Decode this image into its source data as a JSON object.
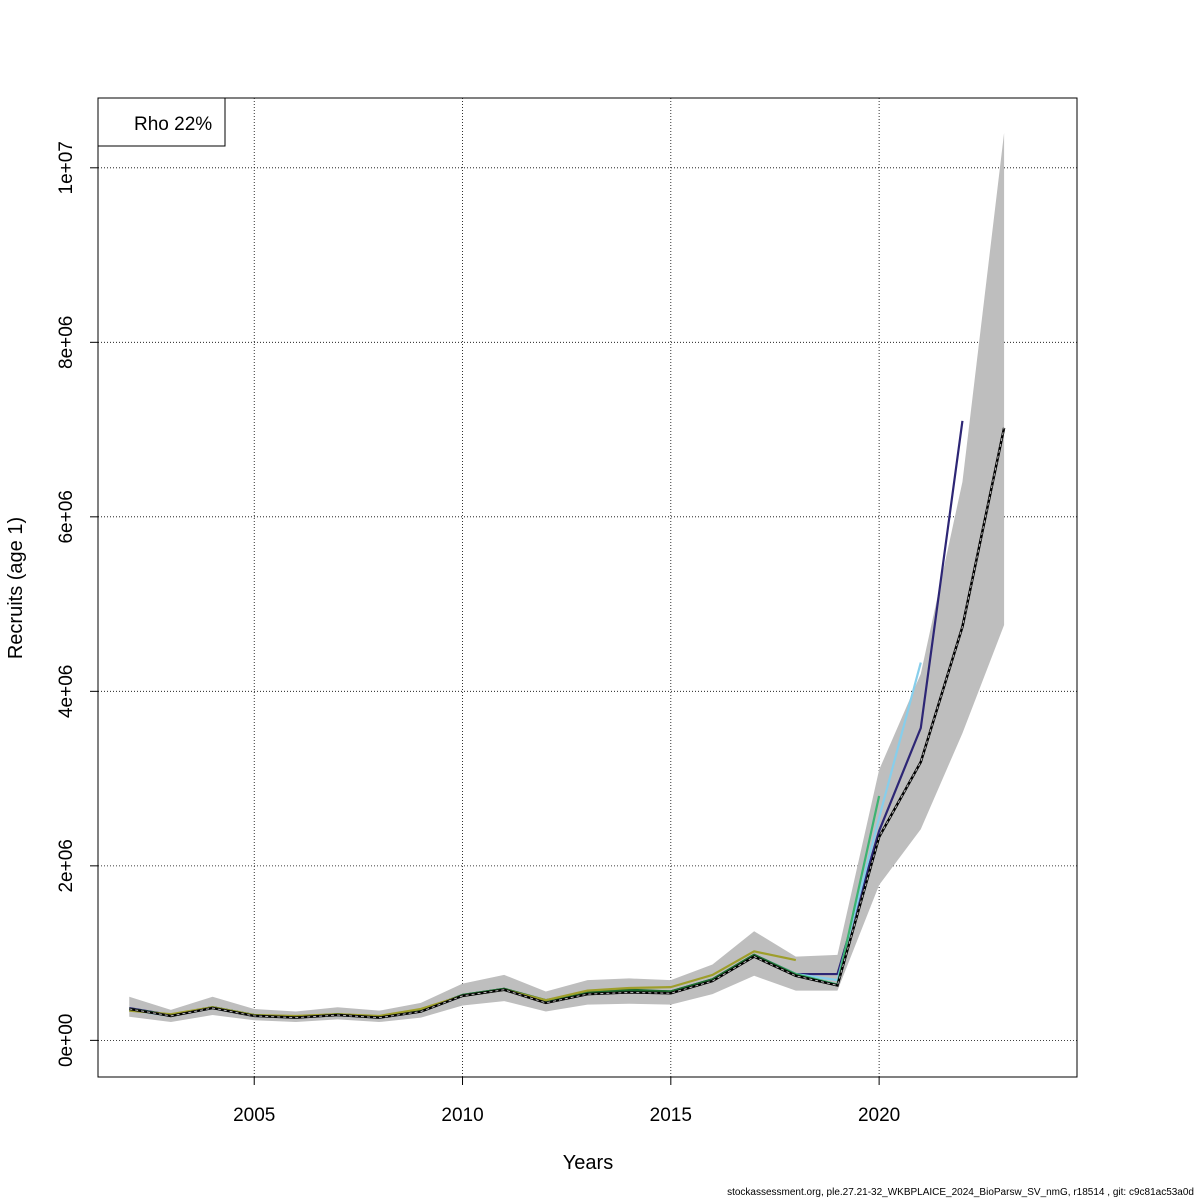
{
  "chart_data": {
    "type": "line",
    "xlabel": "Years",
    "ylabel": "Recruits (age 1)",
    "xlim": [
      2001.25,
      2024.75
    ],
    "ylim": [
      -420000,
      10800000
    ],
    "x_ticks": [
      2005,
      2010,
      2015,
      2020
    ],
    "x_tick_labels": [
      "2005",
      "2010",
      "2015",
      "2020"
    ],
    "y_ticks": [
      0,
      2000000,
      4000000,
      6000000,
      8000000,
      10000000
    ],
    "y_tick_labels": [
      "0e+00",
      "2e+06",
      "4e+06",
      "6e+06",
      "8e+06",
      "1e+07"
    ],
    "grid": true,
    "legend": {
      "position": "top-left",
      "text": "Rho 22%"
    },
    "confidence_band": {
      "color": "#bebebe",
      "x": [
        2002,
        2003,
        2004,
        2005,
        2006,
        2007,
        2008,
        2009,
        2010,
        2011,
        2012,
        2013,
        2014,
        2015,
        2016,
        2017,
        2018,
        2019,
        2020,
        2021,
        2022,
        2023
      ],
      "upper": [
        500000,
        350000,
        500000,
        360000,
        330000,
        380000,
        340000,
        430000,
        650000,
        750000,
        560000,
        690000,
        710000,
        690000,
        870000,
        1250000,
        960000,
        980000,
        3100000,
        4200000,
        6400000,
        10400000
      ],
      "lower": [
        270000,
        210000,
        290000,
        230000,
        210000,
        240000,
        210000,
        260000,
        400000,
        450000,
        330000,
        410000,
        420000,
        410000,
        530000,
        740000,
        570000,
        570000,
        1780000,
        2420000,
        3520000,
        4760000
      ]
    },
    "series": [
      {
        "color": "#000000",
        "style": "dashed",
        "x": [
          2002,
          2003,
          2004,
          2005,
          2006,
          2007,
          2008,
          2009,
          2010,
          2011,
          2012,
          2013,
          2014,
          2015,
          2016,
          2017,
          2018,
          2019,
          2020,
          2021,
          2022,
          2023
        ],
        "values": [
          360000,
          280000,
          370000,
          280000,
          260000,
          290000,
          260000,
          330000,
          510000,
          580000,
          430000,
          530000,
          550000,
          540000,
          680000,
          960000,
          740000,
          630000,
          2330000,
          3190000,
          4740000,
          7020000
        ]
      },
      {
        "color": "#2d2675",
        "style": "solid",
        "x": [
          2002,
          2003,
          2004,
          2005,
          2006,
          2007,
          2008,
          2009,
          2010,
          2011,
          2012,
          2013,
          2014,
          2015,
          2016,
          2017,
          2018,
          2019,
          2020,
          2021,
          2022
        ],
        "values": [
          370000,
          290000,
          380000,
          290000,
          270000,
          300000,
          270000,
          340000,
          520000,
          590000,
          440000,
          540000,
          570000,
          560000,
          700000,
          980000,
          760000,
          760000,
          2400000,
          3580000,
          7100000
        ]
      },
      {
        "color": "#87ceeb",
        "style": "solid",
        "x": [
          2002,
          2003,
          2004,
          2005,
          2006,
          2007,
          2008,
          2009,
          2010,
          2011,
          2012,
          2013,
          2014,
          2015,
          2016,
          2017,
          2018,
          2019,
          2020,
          2021
        ],
        "values": [
          350000,
          280000,
          370000,
          280000,
          260000,
          290000,
          260000,
          330000,
          510000,
          580000,
          440000,
          540000,
          560000,
          550000,
          690000,
          970000,
          760000,
          690000,
          2550000,
          4330000
        ]
      },
      {
        "color": "#3cb371",
        "style": "solid",
        "x": [
          2002,
          2003,
          2004,
          2005,
          2006,
          2007,
          2008,
          2009,
          2010,
          2011,
          2012,
          2013,
          2014,
          2015,
          2016,
          2017,
          2018,
          2019,
          2020
        ],
        "values": [
          360000,
          290000,
          380000,
          290000,
          270000,
          300000,
          270000,
          340000,
          520000,
          590000,
          450000,
          550000,
          570000,
          560000,
          700000,
          980000,
          760000,
          640000,
          2800000
        ]
      },
      {
        "color": "#1f6b2e",
        "style": "solid",
        "x": [
          2002,
          2003,
          2004,
          2005,
          2006,
          2007,
          2008,
          2009,
          2010,
          2011,
          2012,
          2013,
          2014,
          2015,
          2016,
          2017,
          2018,
          2019
        ],
        "values": [
          360000,
          290000,
          380000,
          290000,
          270000,
          300000,
          270000,
          340000,
          520000,
          590000,
          460000,
          550000,
          580000,
          560000,
          700000,
          980000,
          750000,
          630000
        ]
      },
      {
        "color": "#9e9e2a",
        "style": "solid",
        "x": [
          2002,
          2003,
          2004,
          2005,
          2006,
          2007,
          2008,
          2009,
          2010,
          2011,
          2012,
          2013,
          2014,
          2015,
          2016,
          2017,
          2018
        ],
        "values": [
          340000,
          300000,
          380000,
          290000,
          280000,
          300000,
          280000,
          360000,
          510000,
          580000,
          460000,
          570000,
          600000,
          610000,
          750000,
          1020000,
          920000
        ]
      }
    ]
  },
  "footer": "stockassessment.org, ple.27.21-32_WKBPLAICE_2024_BioParsw_SV_nmG, r18514 , git: c9c81ac53a0d"
}
